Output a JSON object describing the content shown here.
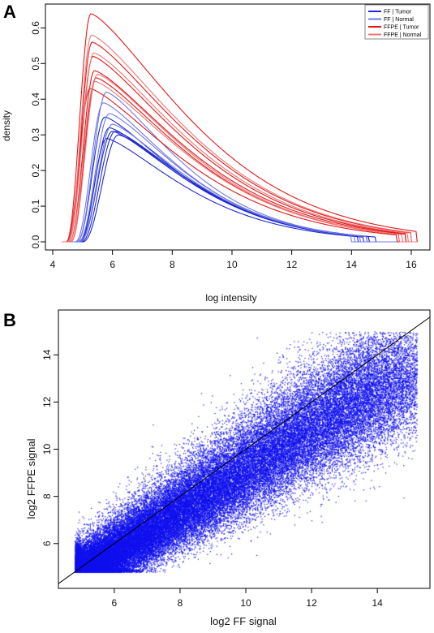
{
  "chart_data": [
    {
      "panel": "A",
      "type": "line",
      "xlabel": "log intensity",
      "ylabel": "density",
      "xlim": [
        4,
        16.3
      ],
      "ylim": [
        0,
        0.66
      ],
      "xticks": [
        4,
        6,
        8,
        10,
        12,
        14,
        16
      ],
      "yticks": [
        0.0,
        0.1,
        0.2,
        0.3,
        0.4,
        0.5,
        0.6
      ],
      "grid": false,
      "legend_position": "top-right",
      "legend": [
        {
          "label": "FF | Tumor",
          "color": "#1f2bd0"
        },
        {
          "label": "FF | Normal",
          "color": "#6f78ea"
        },
        {
          "label": "FFPE | Tumor",
          "color": "#e01818"
        },
        {
          "label": "FFPE | Normal",
          "color": "#f07474"
        }
      ],
      "series": [
        {
          "group": "FF | Tumor",
          "peak_x": 6.0,
          "peak_y": 0.31,
          "start_x": 4.9,
          "end_x": 14.6
        },
        {
          "group": "FF | Tumor",
          "peak_x": 5.9,
          "peak_y": 0.32,
          "start_x": 4.85,
          "end_x": 14.5
        },
        {
          "group": "FF | Tumor",
          "peak_x": 6.2,
          "peak_y": 0.3,
          "start_x": 5.0,
          "end_x": 14.8
        },
        {
          "group": "FF | Tumor",
          "peak_x": 5.8,
          "peak_y": 0.29,
          "start_x": 4.9,
          "end_x": 14.4
        },
        {
          "group": "FF | Tumor",
          "peak_x": 5.75,
          "peak_y": 0.35,
          "start_x": 4.8,
          "end_x": 14.2
        },
        {
          "group": "FF | Tumor",
          "peak_x": 6.1,
          "peak_y": 0.31,
          "start_x": 4.95,
          "end_x": 14.6
        },
        {
          "group": "FF | Normal",
          "peak_x": 5.8,
          "peak_y": 0.42,
          "start_x": 4.8,
          "end_x": 14.0
        },
        {
          "group": "FF | Normal",
          "peak_x": 5.7,
          "peak_y": 0.39,
          "start_x": 4.75,
          "end_x": 14.1
        },
        {
          "group": "FF | Normal",
          "peak_x": 5.9,
          "peak_y": 0.36,
          "start_x": 4.85,
          "end_x": 14.3
        },
        {
          "group": "FF | Normal",
          "peak_x": 6.0,
          "peak_y": 0.33,
          "start_x": 4.9,
          "end_x": 14.5
        },
        {
          "group": "FFPE | Tumor",
          "peak_x": 5.28,
          "peak_y": 0.64,
          "start_x": 4.45,
          "end_x": 16.2
        },
        {
          "group": "FFPE | Tumor",
          "peak_x": 5.32,
          "peak_y": 0.56,
          "start_x": 4.5,
          "end_x": 16.0
        },
        {
          "group": "FFPE | Tumor",
          "peak_x": 5.35,
          "peak_y": 0.52,
          "start_x": 4.5,
          "end_x": 15.8
        },
        {
          "group": "FFPE | Tumor",
          "peak_x": 5.4,
          "peak_y": 0.48,
          "start_x": 4.55,
          "end_x": 15.8
        },
        {
          "group": "FFPE | Tumor",
          "peak_x": 5.45,
          "peak_y": 0.46,
          "start_x": 4.6,
          "end_x": 15.6
        },
        {
          "group": "FFPE | Tumor",
          "peak_x": 5.25,
          "peak_y": 0.43,
          "start_x": 4.45,
          "end_x": 15.5
        },
        {
          "group": "FFPE | Normal",
          "peak_x": 5.3,
          "peak_y": 0.58,
          "start_x": 4.5,
          "end_x": 16.0
        },
        {
          "group": "FFPE | Normal",
          "peak_x": 5.38,
          "peak_y": 0.53,
          "start_x": 4.5,
          "end_x": 15.9
        },
        {
          "group": "FFPE | Normal",
          "peak_x": 5.42,
          "peak_y": 0.45,
          "start_x": 4.55,
          "end_x": 15.7
        },
        {
          "group": "FFPE | Normal",
          "peak_x": 5.5,
          "peak_y": 0.47,
          "start_x": 4.6,
          "end_x": 15.6
        }
      ]
    },
    {
      "panel": "B",
      "type": "scatter",
      "xlabel": "log2 FF signal",
      "ylabel": "log2 FFPE signal",
      "xlim": [
        4.3,
        15.6
      ],
      "ylim": [
        4.1,
        15.9
      ],
      "xticks": [
        6,
        8,
        10,
        12,
        14
      ],
      "yticks": [
        6,
        8,
        10,
        12,
        14
      ],
      "grid": false,
      "point_color": "#1010ee",
      "reference_line": {
        "slope": 1,
        "intercept": 0,
        "color": "#000000"
      },
      "cloud": {
        "x_range": [
          4.8,
          15.2
        ],
        "y_range": [
          4.8,
          15.0
        ],
        "center": [
          8.5,
          7.6
        ],
        "trend": "dense along diagonal, FFPE signal mostly below FF signal at high intensity"
      }
    }
  ],
  "labels": {
    "panel_a": "A",
    "panel_b": "B"
  }
}
